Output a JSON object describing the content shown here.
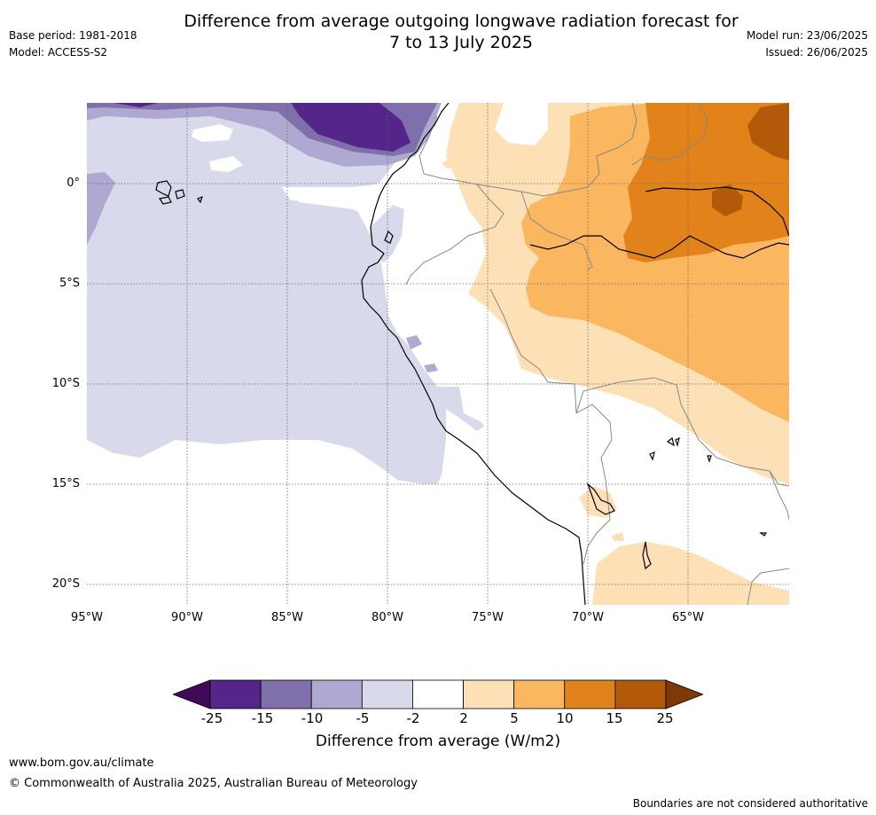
{
  "header": {
    "title": "Difference from average outgoing longwave radiation forecast for\n7 to 13 July 2025",
    "base_period": "Base period: 1981-2018",
    "model": "Model: ACCESS-S2",
    "model_run": "Model run: 23/06/2025",
    "issued": "Issued: 26/06/2025"
  },
  "map": {
    "lat_labels": [
      "0°",
      "5°S",
      "10°S",
      "15°S",
      "20°S"
    ],
    "lon_labels": [
      "95°W",
      "90°W",
      "85°W",
      "80°W",
      "75°W",
      "70°W",
      "65°W"
    ]
  },
  "legend": {
    "label": "Difference from average (W/m2)",
    "ticks": [
      "-25",
      "-15",
      "-10",
      "-5",
      "-2",
      "2",
      "5",
      "10",
      "15",
      "25"
    ],
    "colors": [
      "#3f0a57",
      "#54268a",
      "#7f70ab",
      "#afa8d1",
      "#d8d9eb",
      "#ffffff",
      "#fde0b5",
      "#fbb660",
      "#e2821a",
      "#b25a09",
      "#7d3a07"
    ]
  },
  "footer": {
    "website": "www.bom.gov.au/climate",
    "copyright": "© Commonwealth of Australia 2025, Australian Bureau of Meteorology",
    "disclaimer": "Boundaries are not considered authoritative"
  }
}
